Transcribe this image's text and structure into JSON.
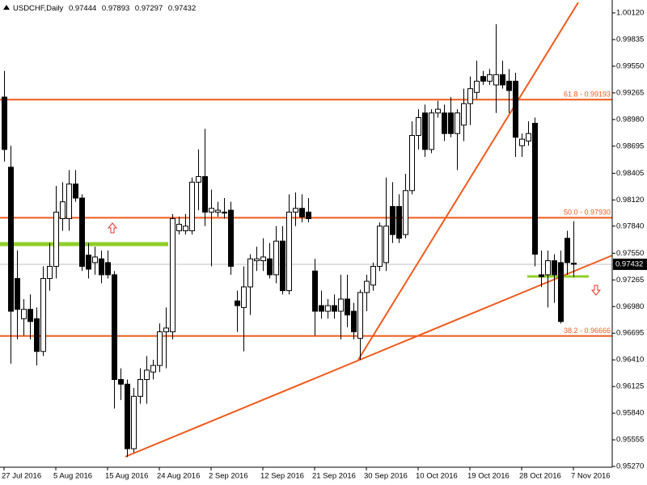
{
  "chart_data": {
    "type": "candlestick",
    "title": "USDCHF,Daily",
    "categories": [
      "27 Jul 2016",
      null,
      null,
      null,
      null,
      null,
      null,
      null,
      "5 Aug 2016",
      null,
      null,
      null,
      null,
      null,
      null,
      null,
      "15 Aug 2016",
      null,
      null,
      null,
      null,
      null,
      null,
      null,
      "24 Aug 2016",
      null,
      null,
      null,
      null,
      null,
      null,
      null,
      "2 Sep 2016",
      null,
      null,
      null,
      null,
      null,
      null,
      null,
      "12 Sep 2016",
      null,
      null,
      null,
      null,
      null,
      null,
      null,
      "21 Sep 2016",
      null,
      null,
      null,
      null,
      null,
      null,
      null,
      "30 Sep 2016",
      null,
      null,
      null,
      null,
      null,
      null,
      null,
      "10 Oct 2016",
      null,
      null,
      null,
      null,
      null,
      null,
      null,
      "19 Oct 2016",
      null,
      null,
      null,
      null,
      null,
      null,
      null,
      "28 Oct 2016",
      null,
      null,
      null,
      null,
      null,
      null,
      null,
      "7 Nov 2016"
    ],
    "open": [
      0.9922,
      0.9847,
      0.9728,
      0.9685,
      0.9695,
      0.9685,
      0.965,
      0.9728,
      0.9741,
      0.9792,
      0.9792,
      0.9829,
      0.9814,
      0.9753,
      0.9745,
      0.9749,
      0.9745,
      0.9732,
      0.962,
      0.9615,
      0.9546,
      0.9602,
      0.962,
      0.9628,
      0.9635,
      0.9671,
      0.9671,
      0.9779,
      0.9779,
      0.9779,
      0.9831,
      0.9837,
      0.9799,
      0.9799,
      0.9799,
      0.9801,
      0.9704,
      0.9697,
      0.9719,
      0.9747,
      0.9747,
      0.9749,
      0.9732,
      0.9768,
      0.9715,
      0.9799,
      0.9803,
      0.9799,
      0.9736,
      0.9699,
      0.9693,
      0.9699,
      0.9693,
      0.9706,
      0.9693,
      0.9664,
      0.9713,
      0.9721,
      0.9741,
      0.9745,
      0.9805,
      0.9805,
      0.9775,
      0.9822,
      0.9881,
      0.9905,
      0.9866,
      0.9905,
      0.9905,
      0.9905,
      0.9883,
      0.9892,
      0.9915,
      0.9927,
      0.9944,
      0.9939,
      0.9935,
      0.9946,
      0.9939,
      0.9939,
      0.987,
      0.9875,
      0.9894,
      0.9732,
      0.9732,
      0.9747,
      0.9745,
      0.9771,
      0.97444
    ],
    "high": [
      0.995,
      0.987,
      0.9758,
      0.9706,
      0.9711,
      0.9697,
      0.9741,
      0.9766,
      0.9827,
      0.9831,
      0.9844,
      0.9844,
      0.9818,
      0.9766,
      0.9762,
      0.9758,
      0.9758,
      0.9736,
      0.9632,
      0.962,
      0.9611,
      0.9632,
      0.9645,
      0.9641,
      0.968,
      0.9697,
      0.9797,
      0.9794,
      0.9797,
      0.9836,
      0.9866,
      0.9888,
      0.9823,
      0.981,
      0.9814,
      0.981,
      0.9715,
      0.9741,
      0.9754,
      0.9762,
      0.9771,
      0.9766,
      0.9784,
      0.9784,
      0.9818,
      0.982,
      0.9818,
      0.9814,
      0.9749,
      0.9715,
      0.9706,
      0.9711,
      0.9732,
      0.9732,
      0.9702,
      0.9716,
      0.9732,
      0.9745,
      0.9788,
      0.9836,
      0.9831,
      0.9818,
      0.984,
      0.9896,
      0.9909,
      0.9914,
      0.9909,
      0.9918,
      0.9914,
      0.9922,
      0.9909,
      0.9931,
      0.9944,
      0.9961,
      0.995,
      0.9952,
      1.0,
      0.9961,
      0.9952,
      0.9948,
      0.9883,
      0.9896,
      0.99,
      0.9758,
      0.9758,
      0.9754,
      0.9758,
      0.9779,
      0.97893
    ],
    "low": [
      0.9853,
      0.9637,
      0.9663,
      0.9667,
      0.9663,
      0.9635,
      0.9645,
      0.9715,
      0.9728,
      0.9779,
      0.9779,
      0.981,
      0.9736,
      0.9728,
      0.9732,
      0.9723,
      0.9728,
      0.9589,
      0.9598,
      0.9537,
      0.9542,
      0.9594,
      0.9594,
      0.962,
      0.9628,
      0.9632,
      0.9663,
      0.9775,
      0.9775,
      0.9775,
      0.9801,
      0.9784,
      0.9741,
      0.9794,
      0.9792,
      0.9732,
      0.9671,
      0.965,
      0.9689,
      0.9736,
      0.9736,
      0.9728,
      0.9723,
      0.9711,
      0.9711,
      0.9784,
      0.9788,
      0.9788,
      0.9667,
      0.9685,
      0.9685,
      0.9685,
      0.9663,
      0.9676,
      0.9663,
      0.9641,
      0.9693,
      0.9715,
      0.9736,
      0.9736,
      0.9766,
      0.9766,
      0.9771,
      0.9818,
      0.9866,
      0.9858,
      0.9862,
      0.99,
      0.9875,
      0.9879,
      0.9844,
      0.9875,
      0.9892,
      0.992,
      0.9935,
      0.9935,
      0.9905,
      0.9931,
      0.9905,
      0.9858,
      0.9858,
      0.987,
      0.9741,
      0.9719,
      0.9697,
      0.9702,
      0.968,
      0.9732,
      0.97297
    ],
    "close": [
      0.9866,
      0.9693,
      0.9695,
      0.9695,
      0.9682,
      0.965,
      0.9728,
      0.9741,
      0.9799,
      0.981,
      0.9829,
      0.9814,
      0.9741,
      0.9738,
      0.9751,
      0.9732,
      0.9732,
      0.962,
      0.9615,
      0.9546,
      0.9602,
      0.962,
      0.963,
      0.9635,
      0.9671,
      0.9675,
      0.9792,
      0.9786,
      0.9784,
      0.9831,
      0.9837,
      0.9799,
      0.9803,
      0.9801,
      0.9798,
      0.9741,
      0.9699,
      0.9719,
      0.9749,
      0.9749,
      0.9751,
      0.9732,
      0.9768,
      0.9715,
      0.9799,
      0.9803,
      0.9794,
      0.9792,
      0.9693,
      0.9693,
      0.9699,
      0.9693,
      0.9706,
      0.9689,
      0.9671,
      0.9713,
      0.9725,
      0.9741,
      0.9784,
      0.9784,
      0.9775,
      0.9771,
      0.9822,
      0.9881,
      0.99,
      0.9866,
      0.9905,
      0.9909,
      0.9883,
      0.9883,
      0.9905,
      0.9915,
      0.9931,
      0.9939,
      0.9939,
      0.9946,
      0.9946,
      0.9935,
      0.9929,
      0.9879,
      0.9877,
      0.9883,
      0.9754,
      0.973,
      0.9747,
      0.9732,
      0.9682,
      0.9745,
      0.97432
    ],
    "up_color": "#ffffff",
    "down_color": "#000000",
    "ylim": [
      0.95262,
      1.00258
    ],
    "yticks": [
      {
        "value": 1.0012,
        "label": "1.00120"
      },
      0.99835,
      {
        "value": 0.9955,
        "label": "0.99550"
      },
      0.99265,
      {
        "value": 0.9898,
        "label": "0.98980"
      },
      0.98695,
      0.98405,
      {
        "value": 0.9812,
        "label": "0.98120"
      },
      {
        "value": 0.9784,
        "label": "0.97840"
      },
      {
        "value": 0.9755,
        "label": "0.97550"
      },
      0.97265,
      {
        "value": 0.9698,
        "label": "0.96980"
      },
      0.96695,
      {
        "value": 0.9641,
        "label": "0.96410"
      },
      0.96125,
      {
        "value": 0.9584,
        "label": "0.95840"
      },
      0.95555,
      {
        "value": 0.9527,
        "label": "0.95270"
      }
    ],
    "fib_color": "#ef5a1c",
    "fib_levels": [
      {
        "value": 0.99193,
        "label": "61.8 - 0.99193"
      },
      {
        "value": 0.9793,
        "label": "50.0 - 0.97930"
      },
      {
        "value": 0.96666,
        "label": "38.2 - 0.96666"
      }
    ]
  }
}
